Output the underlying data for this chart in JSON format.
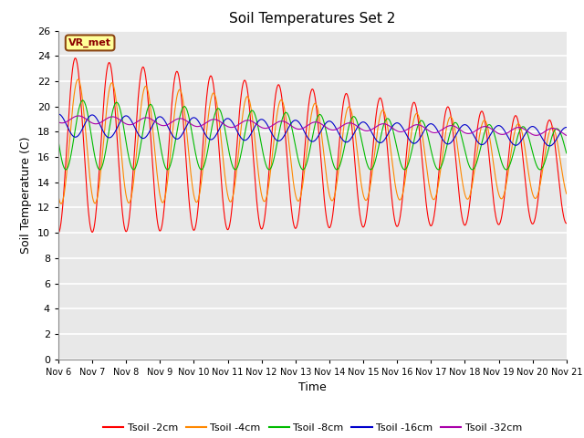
{
  "title": "Soil Temperatures Set 2",
  "xlabel": "Time",
  "ylabel": "Soil Temperature (C)",
  "ylim": [
    0,
    26
  ],
  "yticks": [
    0,
    2,
    4,
    6,
    8,
    10,
    12,
    14,
    16,
    18,
    20,
    22,
    24,
    26
  ],
  "xtick_labels": [
    "Nov 6",
    "Nov 7",
    "Nov 8",
    "Nov 9",
    "Nov 10",
    "Nov 11",
    "Nov 12",
    "Nov 13",
    "Nov 14",
    "Nov 15",
    "Nov 16",
    "Nov 17",
    "Nov 18",
    "Nov 19",
    "Nov 20",
    "Nov 21"
  ],
  "series_colors": [
    "#ff0000",
    "#ff8800",
    "#00bb00",
    "#0000cc",
    "#aa00aa"
  ],
  "series_labels": [
    "Tsoil -2cm",
    "Tsoil -4cm",
    "Tsoil -8cm",
    "Tsoil -16cm",
    "Tsoil -32cm"
  ],
  "annotation_text": "VR_met",
  "annotation_bg": "#ffff99",
  "annotation_border": "#8b4513",
  "annotation_text_color": "#8b0000",
  "plot_bg": "#e8e8e8",
  "grid_color": "#ffffff",
  "n_points": 1440,
  "n_days": 15
}
